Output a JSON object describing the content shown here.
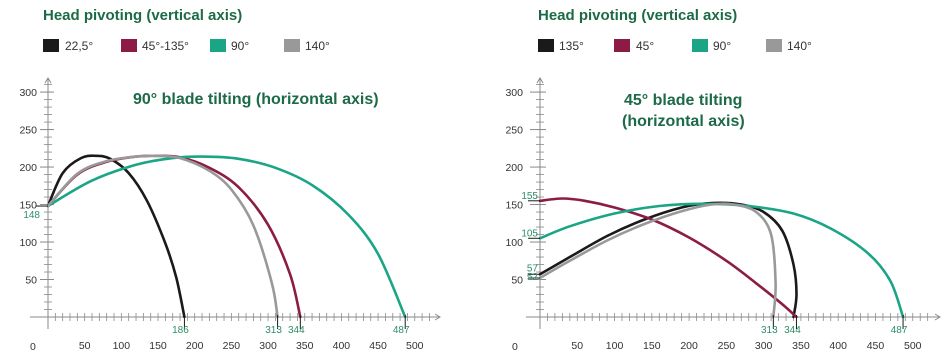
{
  "chart_data": [
    {
      "type": "line",
      "heading": "Head pivoting (vertical axis)",
      "title": "90° blade tilting (horizontal axis)",
      "title_lines": [
        "90° blade tilting (horizontal axis)"
      ],
      "xlim": [
        0,
        520
      ],
      "ylim": [
        0,
        320
      ],
      "x_ticks": [
        50,
        100,
        150,
        200,
        250,
        300,
        350,
        400,
        450,
        500
      ],
      "y_ticks": [
        50,
        100,
        150,
        200,
        250,
        300
      ],
      "origin_label": "0",
      "grid": false,
      "legend_position": "top-left",
      "series": [
        {
          "name": "22,5°",
          "color": "#1a1a1a",
          "x": [
            0,
            20,
            45,
            65,
            85,
            110,
            135,
            160,
            175,
            186
          ],
          "y": [
            148,
            192,
            212,
            215,
            211,
            192,
            155,
            98,
            52,
            0
          ]
        },
        {
          "name": "45°-135°",
          "color": "#8c1c45",
          "x": [
            0,
            40,
            80,
            120,
            145,
            180,
            220,
            260,
            300,
            330,
            344
          ],
          "y": [
            148,
            190,
            207,
            214,
            215,
            213,
            199,
            173,
            123,
            57,
            0
          ]
        },
        {
          "name": "90°",
          "color": "#1aa585",
          "x": [
            0,
            60,
            120,
            170,
            210,
            260,
            310,
            360,
            410,
            450,
            487
          ],
          "y": [
            148,
            182,
            203,
            212,
            214,
            211,
            199,
            176,
            136,
            84,
            0
          ]
        },
        {
          "name": "140°",
          "color": "#999999",
          "x": [
            0,
            40,
            80,
            120,
            145,
            180,
            220,
            250,
            280,
            305,
            313
          ],
          "y": [
            148,
            191,
            208,
            214,
            215,
            212,
            195,
            170,
            122,
            46,
            0
          ]
        }
      ],
      "annotations": {
        "start_y": "148",
        "end_x": [
          "186",
          "313",
          "344",
          "487"
        ]
      }
    },
    {
      "type": "line",
      "heading": "Head pivoting (vertical axis)",
      "title": "45° blade tilting (horizontal axis)",
      "title_lines": [
        "45° blade tilting",
        "(horizontal axis)"
      ],
      "xlim": [
        0,
        520
      ],
      "ylim": [
        0,
        320
      ],
      "x_ticks": [
        50,
        100,
        150,
        200,
        250,
        300,
        350,
        400,
        450,
        500
      ],
      "y_ticks": [
        50,
        100,
        150,
        200,
        250,
        300
      ],
      "origin_label": "0",
      "grid": false,
      "legend_position": "top-left",
      "series": [
        {
          "name": "135°",
          "color": "#1a1a1a",
          "x": [
            0,
            40,
            90,
            140,
            190,
            230,
            270,
            300,
            325,
            340,
            344,
            340
          ],
          "y": [
            57,
            80,
            108,
            130,
            146,
            152,
            150,
            140,
            115,
            70,
            30,
            0
          ]
        },
        {
          "name": "45°",
          "color": "#8c1c45",
          "x": [
            0,
            30,
            60,
            100,
            150,
            200,
            250,
            290,
            325,
            344
          ],
          "y": [
            155,
            158,
            155,
            146,
            130,
            106,
            75,
            45,
            17,
            0
          ]
        },
        {
          "name": "90°",
          "color": "#1aa585",
          "x": [
            0,
            40,
            100,
            160,
            220,
            280,
            340,
            390,
            440,
            470,
            487
          ],
          "y": [
            105,
            121,
            138,
            148,
            151,
            148,
            138,
            118,
            85,
            48,
            0
          ]
        },
        {
          "name": "140°",
          "color": "#999999",
          "x": [
            0,
            40,
            90,
            140,
            190,
            230,
            260,
            290,
            310,
            316,
            313
          ],
          "y": [
            52,
            75,
            102,
            124,
            141,
            150,
            150,
            140,
            110,
            45,
            0
          ]
        }
      ],
      "annotations": {
        "start_y": [
          "155",
          "105",
          "57",
          "52"
        ],
        "end_x": [
          "313",
          "344",
          "487"
        ]
      }
    }
  ]
}
